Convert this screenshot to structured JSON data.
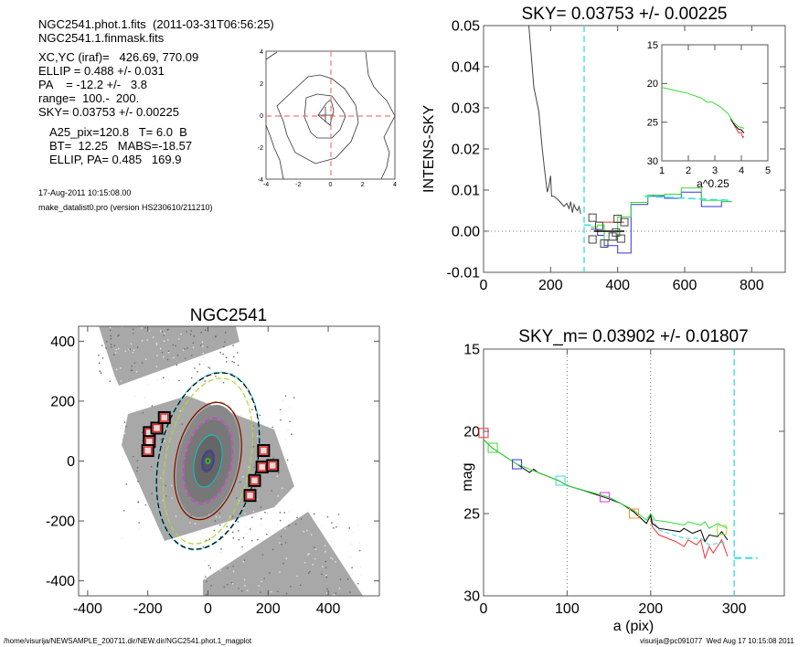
{
  "header": {
    "line1": "NGC2541.phot.1.fits  (2011-03-31T06:56:25)",
    "line2": "NGC2541.1.finmask.fits",
    "xcyc": "XC,YC (iraf)=   426.69, 770.09",
    "ellip": "ELLIP = 0.488 +/- 0.031",
    "pa": "PA    = -12.2 +/-   3.8",
    "range": "range=  100.-  200.",
    "sky": "SKY= 0.03753 +/- 0.00225",
    "a25": "A25_pix=120.8   T= 6.0  B",
    "bt": "BT=  12.25   MABS=-18.57",
    "ellip_pa": "ELLIP, PA= 0.485   169.9",
    "date": "17-Aug-2011 10:15:08.00",
    "program": "make_datalist0.pro (version HS230610/211210)"
  },
  "footer": {
    "path": "/home/visurija/NEWSAMPLE_200711.dir/NEW.dir/NGC2541.phot.1_magplot",
    "user": "visurija@pc091077  Wed Aug 17 10:15:08 2011"
  },
  "colors": {
    "cyan": "#33dddd",
    "red": "#ee3333",
    "green": "#33dd33",
    "blue": "#3333dd",
    "magenta": "#dd33dd",
    "orange": "#ee9933",
    "yellowgreen": "#aadd33",
    "black": "#000000",
    "gray": "#555555"
  },
  "chart_data": [
    {
      "id": "contour",
      "type": "contour",
      "xlim": [
        -4,
        4
      ],
      "ylim": [
        -4,
        4
      ],
      "xticks": [
        "-4",
        "-2",
        "0",
        "2",
        "4"
      ],
      "yticks": [
        "-4",
        "-2",
        "0",
        "2",
        "4"
      ]
    },
    {
      "id": "sky",
      "type": "line",
      "title": "SKY= 0.03753 +/- 0.00225",
      "ylabel": "INTENS-SKY",
      "xlim": [
        0,
        900
      ],
      "ylim": [
        -0.01,
        0.05
      ],
      "xticks": [
        "0",
        "200",
        "400",
        "600",
        "800"
      ],
      "yticks": [
        "-0.01",
        "0.00",
        "0.01",
        "0.02",
        "0.03",
        "0.04",
        "0.05"
      ],
      "vline_cyan_dashed": 300,
      "hline_dotted": 0,
      "profile": [
        [
          135,
          0.05
        ],
        [
          150,
          0.035
        ],
        [
          160,
          0.031
        ],
        [
          165,
          0.029
        ],
        [
          175,
          0.02
        ],
        [
          182,
          0.015
        ],
        [
          190,
          0.0095
        ],
        [
          195,
          0.011
        ],
        [
          200,
          0.0135
        ],
        [
          203,
          0.0085
        ],
        [
          210,
          0.0085
        ],
        [
          220,
          0.0078
        ],
        [
          230,
          0.007
        ],
        [
          240,
          0.006
        ],
        [
          248,
          0.0068
        ],
        [
          255,
          0.0055
        ],
        [
          260,
          0.0072
        ],
        [
          265,
          0.0045
        ],
        [
          270,
          0.0065
        ],
        [
          275,
          0.0055
        ],
        [
          280,
          0.005
        ],
        [
          285,
          0.006
        ],
        [
          290,
          0.0042
        ]
      ],
      "steps": [
        {
          "color": "blue",
          "edges": [
            320,
            340,
            360,
            400,
            440,
            490,
            540,
            590,
            650,
            710,
            740
          ],
          "values": [
            0.0005,
            -0.001,
            -0.0035,
            -0.0053,
            0.0065,
            0.0085,
            0.008,
            0.0095,
            0.006,
            0.0072
          ]
        },
        {
          "color": "green",
          "edges": [
            320,
            340,
            360,
            400,
            440,
            490,
            540,
            590,
            650,
            710,
            740
          ],
          "values": [
            0.001,
            0.0015,
            -0.0022,
            0.0035,
            0.007,
            0.0088,
            0.009,
            0.0105,
            0.0075,
            0.0072
          ]
        },
        {
          "color": "red",
          "edges": [
            340,
            420
          ],
          "values": [
            0.0022
          ]
        },
        {
          "color": "black",
          "edges": [
            330,
            420
          ],
          "values": [
            0.0
          ]
        }
      ],
      "cyan_dashed_segments": [
        [
          [
            300,
            0.0015
          ],
          [
            320,
            0.0015
          ]
        ],
        [
          [
            480,
            0.0085
          ],
          [
            740,
            0.0075
          ]
        ]
      ],
      "squares": [
        [
          325,
          0.0033
        ],
        [
          345,
          0.0013
        ],
        [
          400,
          0.003
        ],
        [
          420,
          0.0022
        ],
        [
          325,
          -0.002
        ],
        [
          360,
          -0.003
        ],
        [
          385,
          -0.0013
        ],
        [
          395,
          -0.0003
        ],
        [
          410,
          -0.0018
        ]
      ],
      "inset": {
        "xlabel": "a^0.25",
        "xlim": [
          1,
          5
        ],
        "ylim": [
          15,
          30
        ],
        "xticks": [
          "1",
          "2",
          "3",
          "4",
          "5"
        ],
        "yticks": [
          "15",
          "20",
          "25",
          "30"
        ],
        "series": [
          {
            "color": "red",
            "points": [
              [
                3.6,
                24.6
              ],
              [
                3.8,
                25.8
              ],
              [
                3.9,
                26.4
              ],
              [
                4.0,
                26.3
              ],
              [
                4.05,
                27.0
              ],
              [
                4.1,
                26.8
              ]
            ]
          },
          {
            "color": "black",
            "points": [
              [
                3.6,
                24.6
              ],
              [
                3.75,
                25.4
              ],
              [
                3.9,
                25.9
              ],
              [
                4.0,
                26.0
              ],
              [
                4.1,
                26.4
              ]
            ]
          },
          {
            "color": "green",
            "points": [
              [
                1,
                20.5
              ],
              [
                1.5,
                20.9
              ],
              [
                2,
                21.3
              ],
              [
                2.5,
                21.9
              ],
              [
                2.7,
                22.4
              ],
              [
                2.9,
                22.4
              ],
              [
                3.2,
                23.0
              ],
              [
                3.5,
                23.9
              ],
              [
                3.7,
                25.0
              ],
              [
                3.9,
                25.6
              ],
              [
                4.1,
                25.8
              ]
            ]
          }
        ]
      }
    },
    {
      "id": "image",
      "type": "image",
      "title": "NGC2541",
      "xlim": [
        -430,
        570
      ],
      "ylim": [
        -450,
        450
      ],
      "xticks": [
        "-400",
        "-200",
        "0",
        "200",
        "400"
      ],
      "yticks": [
        "-400",
        "-200",
        "0",
        "200",
        "400"
      ],
      "masked_boxes": [
        [
          -195,
          95
        ],
        [
          -195,
          65
        ],
        [
          -170,
          110
        ],
        [
          -145,
          145
        ],
        [
          -200,
          35
        ],
        [
          185,
          35
        ],
        [
          180,
          -20
        ],
        [
          215,
          -15
        ],
        [
          155,
          -65
        ],
        [
          140,
          -115
        ]
      ],
      "ellipses": [
        {
          "color": "cyan",
          "a": 300,
          "b": 165,
          "dashed": true
        },
        {
          "color": "black",
          "a": 298,
          "b": 163,
          "dashed": true
        },
        {
          "color": "yellowgreen",
          "a": 280,
          "b": 140,
          "dashed": true
        },
        {
          "color": "orange",
          "a": 200,
          "b": 108,
          "dashed": true
        },
        {
          "color": "#661111",
          "a": 198,
          "b": 106,
          "dashed": false
        },
        {
          "color": "magenta",
          "a": 145,
          "b": 78,
          "dashed": true
        },
        {
          "color": "#22bbbb",
          "a": 88,
          "b": 45,
          "dashed": false
        },
        {
          "color": "blue",
          "a": 33,
          "b": 18,
          "dashed": false
        },
        {
          "color": "green",
          "a": 8,
          "b": 7,
          "dashed": false
        }
      ]
    },
    {
      "id": "mag",
      "type": "line",
      "title": "SKY_m=  0.03902 +/- 0.01807",
      "xlabel": "a (pix)",
      "ylabel": "mag",
      "xlim": [
        0,
        360
      ],
      "ylim": [
        30,
        15
      ],
      "xticks": [
        "0",
        "100",
        "200",
        "300"
      ],
      "yticks": [
        "15",
        "20",
        "25",
        "30"
      ],
      "vlines_dotted": [
        100,
        200
      ],
      "vline_cyan_dashed": 300,
      "cyan_dashed_segments": [
        [
          [
            300,
            27.7
          ],
          [
            328,
            27.7
          ]
        ]
      ],
      "series": [
        {
          "color": "red",
          "points": [
            [
              200,
              25.3
            ],
            [
              202,
              25.8
            ],
            [
              210,
              26.3
            ],
            [
              230,
              26.7
            ],
            [
              240,
              27.0
            ],
            [
              245,
              26.6
            ],
            [
              255,
              26.9
            ],
            [
              260,
              26.6
            ],
            [
              265,
              27.7
            ],
            [
              270,
              27.0
            ],
            [
              275,
              27.4
            ],
            [
              280,
              27.0
            ],
            [
              285,
              26.6
            ],
            [
              292,
              27.6
            ]
          ]
        },
        {
          "color": "cyan",
          "points": [
            [
              200,
              25.2
            ],
            [
              210,
              26.0
            ],
            [
              240,
              26.5
            ],
            [
              260,
              26.5
            ],
            [
              270,
              26.9
            ],
            [
              292,
              26.7
            ]
          ]
        },
        {
          "color": "black",
          "points": [
            [
              0,
              20.5
            ],
            [
              10,
              21.0
            ],
            [
              40,
              22.0
            ],
            [
              55,
              22.5
            ],
            [
              60,
              22.3
            ],
            [
              65,
              22.5
            ],
            [
              90,
              23.0
            ],
            [
              100,
              23.3
            ],
            [
              120,
              23.6
            ],
            [
              150,
              24.1
            ],
            [
              165,
              24.4
            ],
            [
              180,
              24.9
            ],
            [
              195,
              25.6
            ],
            [
              200,
              25.1
            ],
            [
              202,
              25.6
            ],
            [
              210,
              25.9
            ],
            [
              235,
              26.1
            ],
            [
              240,
              25.9
            ],
            [
              250,
              26.2
            ],
            [
              260,
              26.0
            ],
            [
              265,
              26.7
            ],
            [
              270,
              26.3
            ],
            [
              280,
              26.4
            ],
            [
              285,
              26.1
            ],
            [
              292,
              26.6
            ]
          ]
        },
        {
          "color": "green",
          "points": [
            [
              0,
              20.5
            ],
            [
              10,
              21.0
            ],
            [
              40,
              22.0
            ],
            [
              60,
              22.4
            ],
            [
              90,
              23.0
            ],
            [
              100,
              23.3
            ],
            [
              150,
              24.0
            ],
            [
              180,
              24.8
            ],
            [
              195,
              25.4
            ],
            [
              200,
              25.0
            ],
            [
              205,
              25.4
            ],
            [
              220,
              25.5
            ],
            [
              240,
              25.7
            ],
            [
              245,
              25.5
            ],
            [
              260,
              25.7
            ],
            [
              265,
              25.5
            ],
            [
              270,
              25.9
            ],
            [
              280,
              25.6
            ],
            [
              292,
              25.9
            ]
          ]
        }
      ],
      "squares": [
        {
          "color": "red",
          "x": 0,
          "y": 20.1
        },
        {
          "color": "green",
          "x": 11,
          "y": 21.0
        },
        {
          "color": "blue",
          "x": 40,
          "y": 22.0
        },
        {
          "color": "cyan",
          "x": 92,
          "y": 23.0
        },
        {
          "color": "magenta",
          "x": 145,
          "y": 24.0
        },
        {
          "color": "orange",
          "x": 180,
          "y": 25.0
        },
        {
          "color": "yellowgreen",
          "x": 285,
          "y": 26.0
        }
      ]
    }
  ]
}
